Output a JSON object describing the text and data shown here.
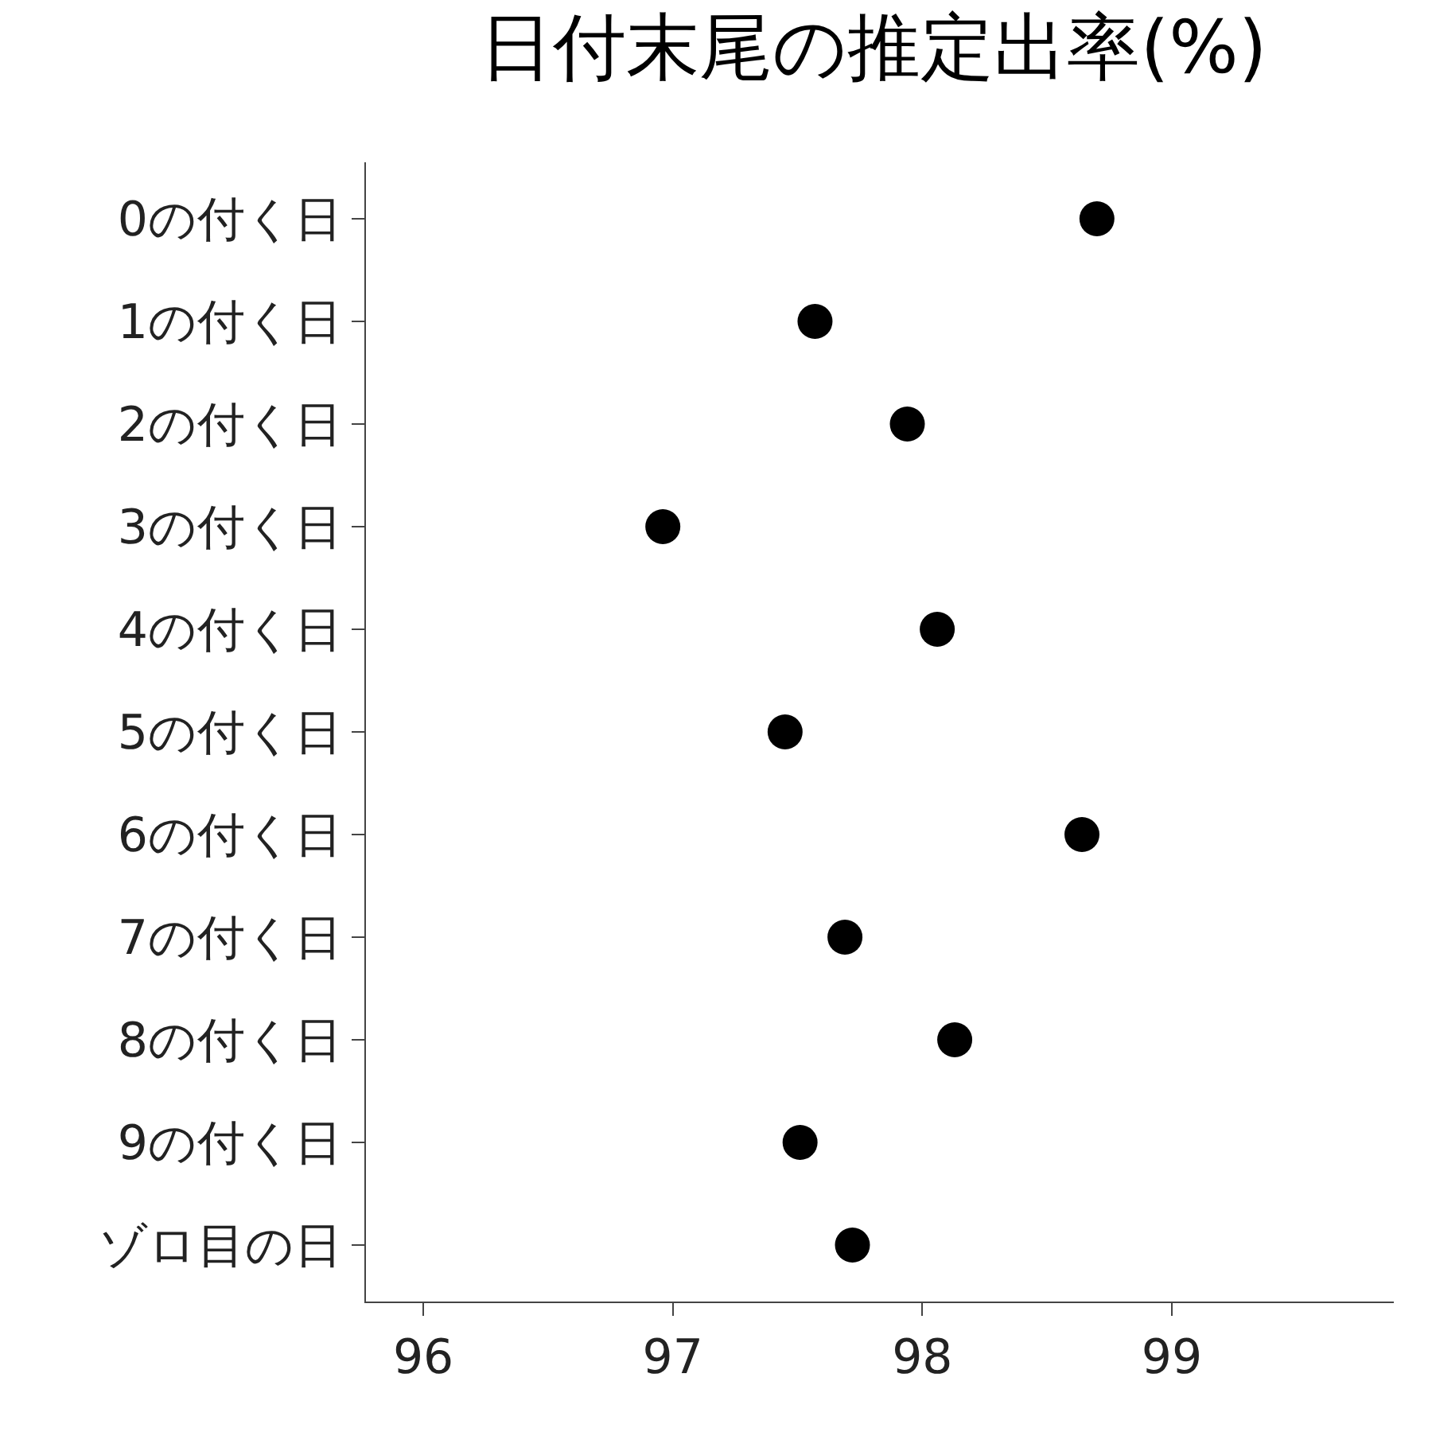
{
  "chart_data": {
    "type": "scatter",
    "title": "日付末尾の推定出率(%)",
    "orientation": "horizontal",
    "categories": [
      "0の付く日",
      "1の付く日",
      "2の付く日",
      "3の付く日",
      "4の付く日",
      "5の付く日",
      "6の付く日",
      "7の付く日",
      "8の付く日",
      "9の付く日",
      "ゾロ目の日"
    ],
    "series": [
      {
        "color": "#000000",
        "values": [
          98.7,
          97.57,
          97.94,
          96.96,
          98.06,
          97.45,
          98.64,
          97.69,
          98.13,
          97.51,
          97.72
        ]
      }
    ],
    "xlim": [
      95.77,
      99.89
    ],
    "xticks": [
      96,
      97,
      98,
      99
    ],
    "marker": "circle"
  }
}
